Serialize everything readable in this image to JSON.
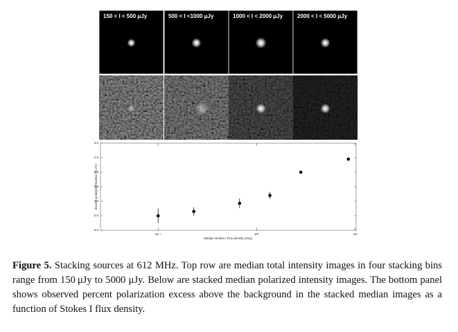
{
  "figure": {
    "panel_labels": [
      "150 < I < 500 μJy",
      "500 < I <1000 μJy",
      "1000 < I < 2000 μJy",
      "2000 < I < 5000 μJy"
    ]
  },
  "chart_data": {
    "type": "scatter",
    "x_label": "Median Stokes I Flux density (mJy)",
    "y_label": "Excess polarized fraction (% of I)",
    "x": [
      0.1,
      0.23,
      0.67,
      1.36,
      2.8,
      8.5
    ],
    "values": [
      0.5,
      0.65,
      0.93,
      1.2,
      2.0,
      2.45
    ],
    "errors": [
      0.25,
      0.15,
      0.17,
      0.12,
      null,
      null
    ],
    "color": "#000000",
    "xscale": "log",
    "xlim": [
      0.026,
      10.2
    ],
    "xticks": [
      {
        "value": 0.1,
        "label": "10⁻¹"
      },
      {
        "value": 1,
        "label": "10⁰"
      },
      {
        "value": 10,
        "label": "10¹"
      }
    ],
    "ylim": [
      0,
      3
    ],
    "yticks": [
      {
        "value": 0,
        "label": "0.0"
      },
      {
        "value": 0.5,
        "label": "0.5"
      },
      {
        "value": 1,
        "label": "1.0"
      },
      {
        "value": 1.5,
        "label": "1.5"
      },
      {
        "value": 2,
        "label": "2.0"
      },
      {
        "value": 2.5,
        "label": "2.5"
      },
      {
        "value": 3,
        "label": "3.0"
      }
    ],
    "grid": false
  },
  "caption": {
    "label": "Figure 5.",
    "text": "Stacking sources at 612 MHz. Top row are median total intensity images in four stacking bins range from 150 μJy to 5000 μJy. Below are stacked median polarized intensity images. The bottom panel shows observed percent polarization excess above the background in the stacked median images as a function of Stokes I flux density."
  }
}
